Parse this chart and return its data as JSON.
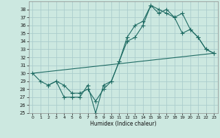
{
  "xlabel": "Humidex (Indice chaleur)",
  "bg_color": "#cce8e0",
  "grid_color": "#aacccc",
  "line_color": "#1a6860",
  "xlim": [
    -0.5,
    23.5
  ],
  "ylim": [
    25,
    39
  ],
  "xticks": [
    0,
    1,
    2,
    3,
    4,
    5,
    6,
    7,
    8,
    9,
    10,
    11,
    12,
    13,
    14,
    15,
    16,
    17,
    18,
    19,
    20,
    21,
    22,
    23
  ],
  "yticks": [
    25,
    26,
    27,
    28,
    29,
    30,
    31,
    32,
    33,
    34,
    35,
    36,
    37,
    38
  ],
  "line1_x": [
    0,
    1,
    2,
    3,
    4,
    5,
    6,
    7,
    8,
    9,
    10,
    11,
    12,
    13,
    14,
    15,
    16,
    17,
    18,
    19,
    20,
    21,
    22,
    23
  ],
  "line1_y": [
    30,
    29,
    28.5,
    29,
    27,
    27,
    27,
    28.5,
    25,
    28.5,
    29,
    31.5,
    34,
    34.5,
    36,
    38.5,
    37.5,
    38,
    37,
    37.5,
    35.5,
    34.5,
    33,
    32.5
  ],
  "line2_x": [
    0,
    23
  ],
  "line2_y": [
    30,
    32.5
  ],
  "line3_x": [
    2,
    3,
    4,
    5,
    6,
    7,
    8,
    9,
    10,
    11,
    12,
    13,
    14,
    15,
    16,
    17,
    18,
    19,
    20,
    21,
    22,
    23
  ],
  "line3_y": [
    28.5,
    29,
    28.5,
    27.5,
    27.5,
    28,
    26.5,
    28,
    29,
    31.5,
    34.5,
    36,
    36.5,
    38.5,
    38,
    37.5,
    37,
    35,
    35.5,
    34.5,
    33,
    32.5
  ]
}
